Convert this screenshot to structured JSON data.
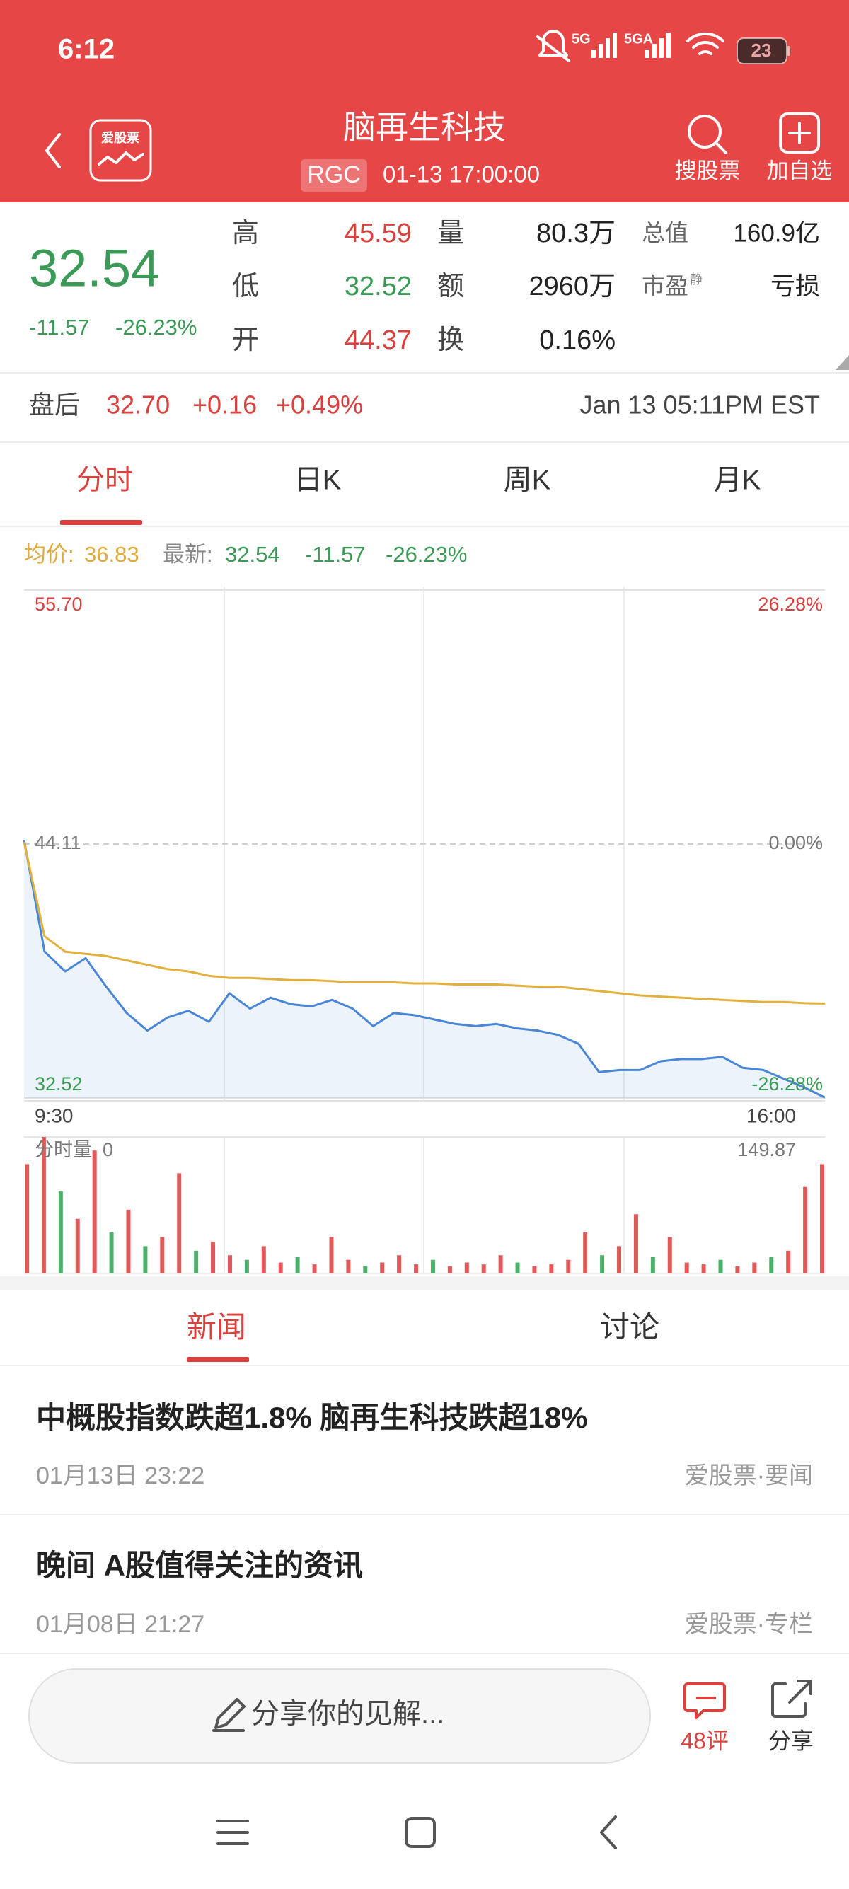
{
  "status_bar": {
    "time": "6:12",
    "battery": "23"
  },
  "header": {
    "logo": "爱股票",
    "title": "脑再生科技",
    "ticker": "RGC",
    "timestamp": "01-13 17:00:00",
    "actions": [
      "搜股票",
      "加自选"
    ]
  },
  "quote": {
    "price": "32.54",
    "change": "-11.57",
    "change_pct": "-26.23%",
    "stats": [
      [
        {
          "label": "高",
          "value": "45.59"
        },
        {
          "label": "量",
          "value": "80.3万"
        },
        {
          "label": "总值",
          "value": "160.9亿"
        }
      ],
      [
        {
          "label": "低",
          "value": "32.52"
        },
        {
          "label": "额",
          "value": "2960万"
        },
        {
          "label": "市盈",
          "label_sup": "静",
          "value": "亏损"
        }
      ],
      [
        {
          "label": "开",
          "value": "44.37"
        },
        {
          "label": "换",
          "value": "0.16%"
        }
      ]
    ]
  },
  "after_hours": {
    "label": "盘后",
    "price": "32.70",
    "change": "+0.16",
    "change_pct": "+0.49%",
    "time": "Jan 13 05:11PM EST"
  },
  "chart_tabs": [
    "分时",
    "日K",
    "周K",
    "月K"
  ],
  "info_row": {
    "avg_label": "均价:",
    "avg": "36.83",
    "latest_label": "最新:",
    "latest": "32.54",
    "change": "-11.57",
    "change_pct": "-26.23%"
  },
  "chart_data": [
    {
      "type": "line",
      "categories": [
        "9:30",
        null,
        null,
        null,
        null,
        null,
        null,
        null,
        null,
        null,
        null,
        null,
        null,
        null,
        null,
        null,
        null,
        null,
        null,
        null,
        null,
        null,
        null,
        null,
        null,
        null,
        null,
        null,
        null,
        null,
        null,
        null,
        null,
        null,
        null,
        null,
        null,
        null,
        null,
        "16:00"
      ],
      "series": [
        {
          "color": "#4a86d8",
          "values": [
            44.3,
            39.2,
            38.3,
            38.9,
            37.6,
            36.4,
            35.6,
            36.2,
            36.5,
            36.0,
            37.3,
            36.6,
            37.1,
            36.8,
            36.7,
            37.0,
            36.6,
            35.8,
            36.4,
            36.3,
            36.1,
            35.9,
            35.8,
            35.9,
            35.7,
            35.6,
            35.4,
            35.0,
            33.7,
            33.8,
            33.8,
            34.2,
            34.3,
            34.3,
            34.4,
            33.9,
            33.8,
            33.4,
            33.0,
            32.54
          ]
        },
        {
          "color": "#e2b03c",
          "values": [
            44.2,
            39.9,
            39.2,
            39.1,
            39.0,
            38.8,
            38.6,
            38.4,
            38.3,
            38.1,
            38.0,
            38.0,
            37.95,
            37.9,
            37.9,
            37.85,
            37.8,
            37.8,
            37.8,
            37.75,
            37.75,
            37.7,
            37.7,
            37.7,
            37.65,
            37.6,
            37.6,
            37.5,
            37.4,
            37.3,
            37.2,
            37.15,
            37.1,
            37.05,
            37.0,
            36.95,
            36.9,
            36.9,
            36.85,
            36.83
          ]
        }
      ],
      "ylim": [
        32.52,
        55.7
      ],
      "yticks": [
        {
          "value": 55.7,
          "label": "55.70"
        },
        44.11,
        32.52
      ],
      "y2lim": [
        -26.28,
        26.28
      ],
      "y2ticks": [
        {
          "value": 26.28,
          "label": "26.28%"
        },
        {
          "value": 0,
          "label": "0.00%"
        },
        {
          "value": -26.28,
          "label": "-26.28%"
        }
      ],
      "grid": true
    },
    {
      "type": "bar",
      "title": "分时量",
      "latest": 0,
      "values": [
        120,
        149.87,
        90,
        60,
        135,
        45,
        70,
        30,
        40,
        110,
        25,
        35,
        20,
        15,
        30,
        12,
        18,
        10,
        40,
        15,
        8,
        12,
        20,
        10,
        15,
        8,
        12,
        10,
        20,
        12,
        8,
        10,
        15,
        45,
        20,
        30,
        65,
        18,
        40,
        12,
        10,
        15,
        8,
        12,
        18,
        25,
        95,
        120
      ],
      "colors": [
        "#e05a5a",
        "#e05a5a",
        "#4caf6a",
        "#e05a5a",
        "#e05a5a",
        "#4caf6a",
        "#e05a5a",
        "#4caf6a",
        "#e05a5a",
        "#e05a5a",
        "#4caf6a",
        "#e05a5a",
        "#e05a5a",
        "#4caf6a",
        "#e05a5a",
        "#e05a5a",
        "#4caf6a",
        "#e05a5a",
        "#e05a5a",
        "#e05a5a",
        "#4caf6a",
        "#e05a5a",
        "#e05a5a",
        "#e05a5a",
        "#4caf6a",
        "#e05a5a",
        "#e05a5a",
        "#e05a5a",
        "#e05a5a",
        "#4caf6a",
        "#e05a5a",
        "#e05a5a",
        "#e05a5a",
        "#e05a5a",
        "#4caf6a",
        "#e05a5a",
        "#e05a5a",
        "#4caf6a",
        "#e05a5a",
        "#e05a5a",
        "#e05a5a",
        "#4caf6a",
        "#e05a5a",
        "#e05a5a",
        "#4caf6a",
        "#e05a5a",
        "#e05a5a",
        "#e05a5a"
      ],
      "ylim": [
        0,
        149.87
      ],
      "yticks": [
        149.87
      ]
    }
  ],
  "news_tabs": [
    "新闻",
    "讨论"
  ],
  "news": [
    {
      "title": "中概股指数跌超1.8% 脑再生科技跌超18%",
      "date": "01月13日 23:22",
      "source": "爱股票·要闻"
    },
    {
      "title": "晚间 A股值得关注的资讯",
      "date": "01月08日 21:27",
      "source": "爱股票·专栏"
    }
  ],
  "bottom_bar": {
    "input_placeholder": "分享你的见解...",
    "comments": "48评",
    "share": "分享"
  }
}
